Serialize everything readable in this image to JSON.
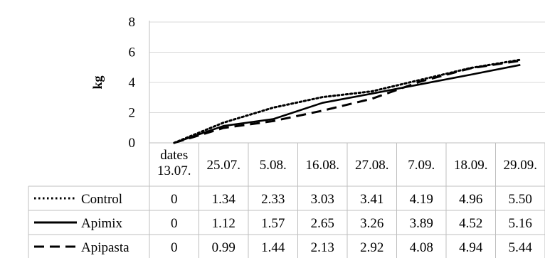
{
  "chart_data": {
    "type": "line",
    "ylabel": "kg",
    "ylim": [
      0,
      8
    ],
    "yticks": [
      "0",
      "2",
      "4",
      "6",
      "8"
    ],
    "categories": [
      "dates 13.07.",
      "25.07.",
      "5.08.",
      "16.08.",
      "27.08.",
      "7.09.",
      "18.09.",
      "29.09."
    ],
    "category_lines": [
      [
        "dates",
        "13.07."
      ],
      [
        "25.07."
      ],
      [
        "5.08."
      ],
      [
        "16.08."
      ],
      [
        "27.08."
      ],
      [
        "7.09."
      ],
      [
        "18.09."
      ],
      [
        "29.09."
      ]
    ],
    "grid": "horizontal",
    "legend": "data-table",
    "series": [
      {
        "name": "Control",
        "style": "dotted",
        "values": [
          0,
          1.34,
          2.33,
          3.03,
          3.41,
          4.19,
          4.96,
          5.5
        ],
        "labels": [
          "0",
          "1.34",
          "2.33",
          "3.03",
          "3.41",
          "4.19",
          "4.96",
          "5.50"
        ]
      },
      {
        "name": "Apimix",
        "style": "solid",
        "values": [
          0,
          1.12,
          1.57,
          2.65,
          3.26,
          3.89,
          4.52,
          5.16
        ],
        "labels": [
          "0",
          "1.12",
          "1.57",
          "2.65",
          "3.26",
          "3.89",
          "4.52",
          "5.16"
        ]
      },
      {
        "name": "Apipasta",
        "style": "dashed",
        "values": [
          0,
          0.99,
          1.44,
          2.13,
          2.92,
          4.08,
          4.94,
          5.44
        ],
        "labels": [
          "0",
          "0.99",
          "1.44",
          "2.13",
          "2.92",
          "4.08",
          "4.94",
          "5.44"
        ]
      }
    ]
  },
  "colors": {
    "line": "#000000",
    "grid": "#d9d9d9",
    "border": "#bfbfbf"
  }
}
